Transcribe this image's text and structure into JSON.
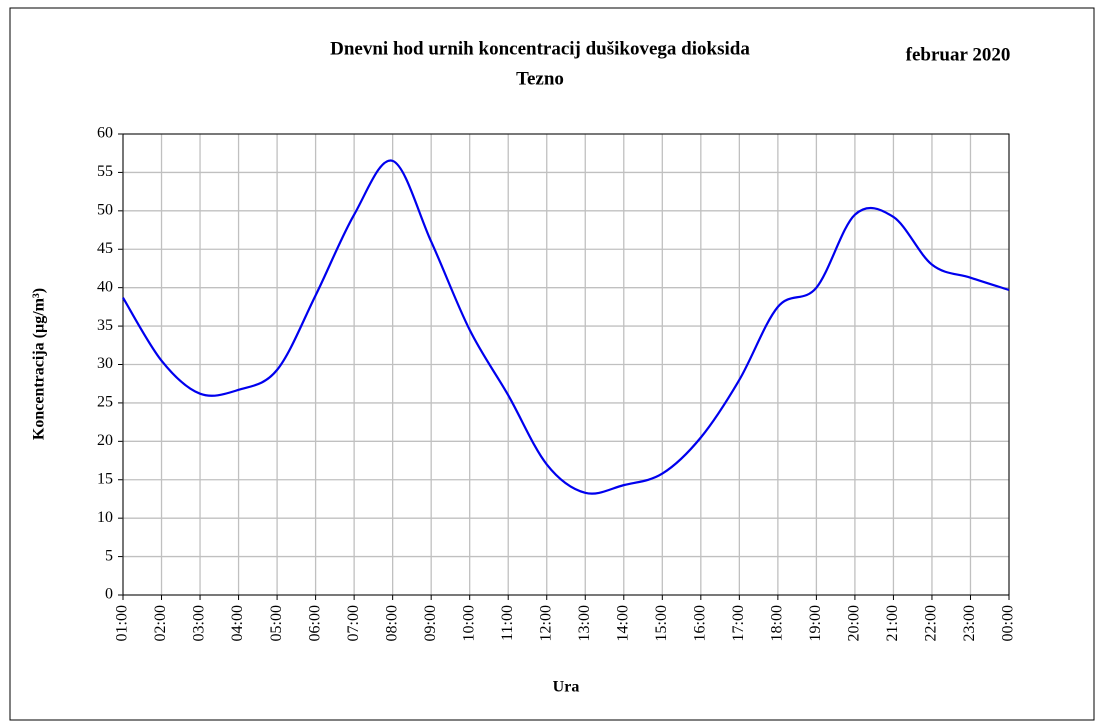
{
  "chart_data": {
    "type": "line",
    "title": "Dnevni hod urnih  koncentracij dušikovega dioksida",
    "subtitle": "Tezno",
    "annotation": "februar 2020",
    "x_label": "Ura",
    "y_label": "Koncentracija  (µg/m³)",
    "categories": [
      "01:00",
      "02:00",
      "03:00",
      "04:00",
      "05:00",
      "06:00",
      "07:00",
      "08:00",
      "09:00",
      "10:00",
      "11:00",
      "12:00",
      "13:00",
      "14:00",
      "15:00",
      "16:00",
      "17:00",
      "18:00",
      "19:00",
      "20:00",
      "21:00",
      "22:00",
      "23:00",
      "00:00"
    ],
    "series": [
      {
        "name": "Tezno",
        "color": "#0000ee",
        "values": [
          38.7,
          30.5,
          26.2,
          26.7,
          29.3,
          39,
          49.5,
          56.5,
          46,
          34.5,
          26,
          17,
          13.3,
          14.3,
          15.8,
          20.5,
          28,
          37.5,
          40,
          49.5,
          49.2,
          43,
          41.3,
          39.7
        ]
      }
    ],
    "ylim": [
      0,
      60
    ],
    "yticks": [
      0,
      5,
      10,
      15,
      20,
      25,
      30,
      35,
      40,
      45,
      50,
      55,
      60
    ],
    "grid": true
  }
}
